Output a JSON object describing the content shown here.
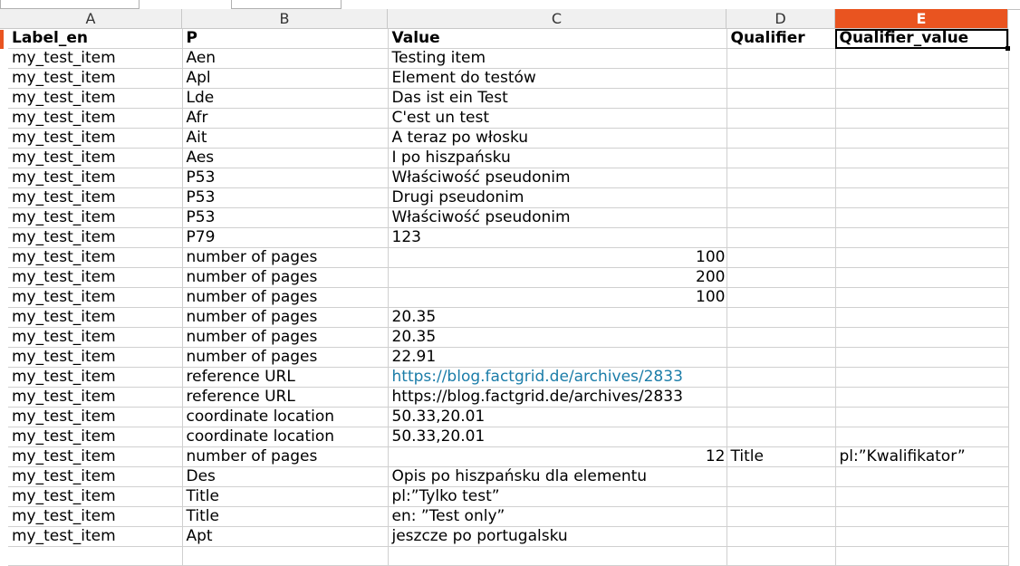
{
  "columns": [
    "A",
    "B",
    "C",
    "D",
    "E"
  ],
  "selected_column": "E",
  "colors": {
    "accent": "#e95420",
    "link": "#1a7ca8"
  },
  "header_row": [
    "Label_en",
    "P",
    "Value",
    "Qualifier",
    "Qualifier_value"
  ],
  "rows": [
    [
      "my_test_item",
      "Aen",
      "Testing item",
      "",
      ""
    ],
    [
      "my_test_item",
      "Apl",
      "Element do testów",
      "",
      ""
    ],
    [
      "my_test_item",
      "Lde",
      "Das ist ein Test",
      "",
      ""
    ],
    [
      "my_test_item",
      "Afr",
      "C'est un test",
      "",
      ""
    ],
    [
      "my_test_item",
      "Ait",
      "A teraz po włosku",
      "",
      ""
    ],
    [
      "my_test_item",
      "Aes",
      "I po hiszpańsku",
      "",
      ""
    ],
    [
      "my_test_item",
      "P53",
      "Właściwość pseudonim",
      "",
      ""
    ],
    [
      "my_test_item",
      "P53",
      "Drugi pseudonim",
      "",
      ""
    ],
    [
      "my_test_item",
      "P53",
      "Właściwość pseudonim",
      "",
      ""
    ],
    [
      "my_test_item",
      "P79",
      "123",
      "",
      ""
    ],
    [
      "my_test_item",
      "number of pages",
      "100",
      "",
      ""
    ],
    [
      "my_test_item",
      "number of pages",
      "200",
      "",
      ""
    ],
    [
      "my_test_item",
      "number of pages",
      "100",
      "",
      ""
    ],
    [
      "my_test_item",
      "number of pages",
      "20.35",
      "",
      ""
    ],
    [
      "my_test_item",
      "number of pages",
      "20.35",
      "",
      ""
    ],
    [
      "my_test_item",
      "number of pages",
      "22.91",
      "",
      ""
    ],
    [
      "my_test_item",
      "reference URL",
      "https://blog.factgrid.de/archives/2833",
      "",
      ""
    ],
    [
      "my_test_item",
      "reference URL",
      "https://blog.factgrid.de/archives/2833",
      "",
      ""
    ],
    [
      "my_test_item",
      "coordinate location",
      "50.33,20.01",
      "",
      ""
    ],
    [
      "my_test_item",
      "coordinate location",
      "50.33,20.01",
      "",
      ""
    ],
    [
      "my_test_item",
      "number of pages",
      "12",
      "Title",
      "pl:”Kwalifikator”"
    ],
    [
      "my_test_item",
      "Des",
      "Opis po hiszpańsku dla elementu",
      "",
      ""
    ],
    [
      "my_test_item",
      "Title",
      "pl:”Tylko test”",
      "",
      ""
    ],
    [
      "my_test_item",
      "Title",
      "en: ”Test only”",
      "",
      ""
    ],
    [
      "my_test_item",
      "Apt",
      "jeszcze po portugalsku",
      "",
      ""
    ],
    [
      "",
      "",
      "",
      "",
      ""
    ]
  ],
  "numeric_value_rows": [
    10,
    11,
    12,
    20
  ],
  "link_value_rows": [
    16
  ]
}
